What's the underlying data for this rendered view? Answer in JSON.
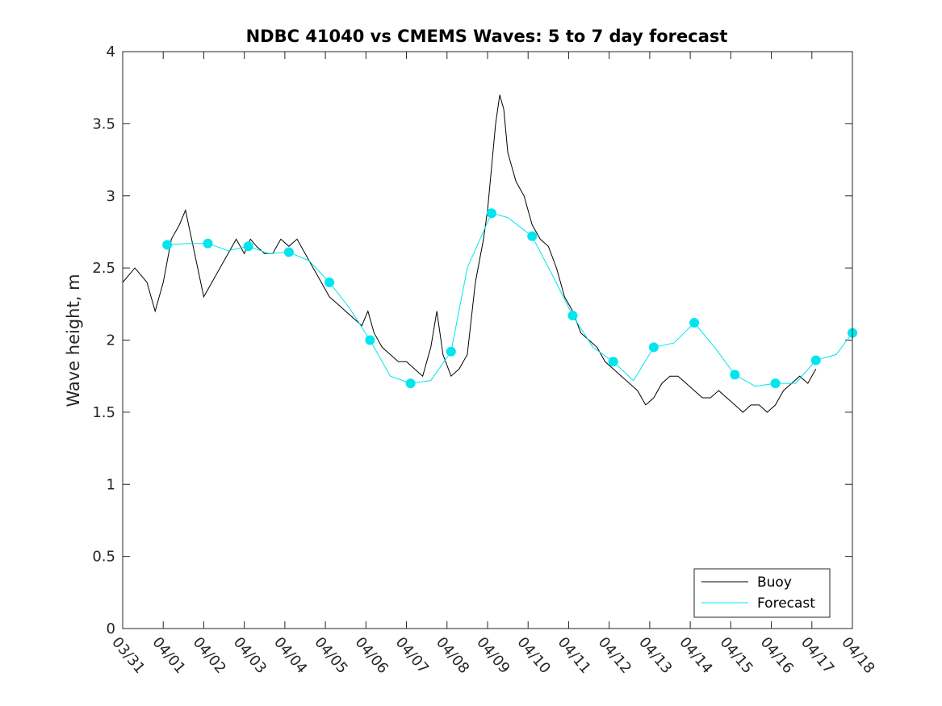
{
  "chart_data": {
    "type": "line",
    "title": "NDBC 41040 vs CMEMS Waves: 5 to 7 day forecast",
    "xlabel": "",
    "ylabel": "Wave height, m",
    "xlim": [
      "03/31",
      "04/18"
    ],
    "ylim": [
      0,
      4
    ],
    "grid": false,
    "legend_position": "bottom-right",
    "x_ticks": [
      "03/31",
      "04/01",
      "04/02",
      "04/03",
      "04/04",
      "04/05",
      "04/06",
      "04/07",
      "04/08",
      "04/09",
      "04/10",
      "04/11",
      "04/12",
      "04/13",
      "04/14",
      "04/15",
      "04/16",
      "04/17",
      "04/18"
    ],
    "y_ticks": [
      0,
      0.5,
      1,
      1.5,
      2,
      2.5,
      3,
      3.5,
      4
    ],
    "y_tick_labels": [
      "0",
      "0.5",
      "1",
      "1.5",
      "2",
      "2.5",
      "3",
      "3.5",
      "4"
    ],
    "colors": {
      "buoy": "#000000",
      "forecast": "#00e5ee"
    },
    "x_units": "days since 03/31 00:00",
    "series": [
      {
        "name": "Buoy",
        "color": "#000000",
        "points": [
          [
            0.0,
            2.4
          ],
          [
            0.3,
            2.5
          ],
          [
            0.6,
            2.4
          ],
          [
            0.8,
            2.2
          ],
          [
            1.0,
            2.4
          ],
          [
            1.2,
            2.7
          ],
          [
            1.4,
            2.8
          ],
          [
            1.55,
            2.9
          ],
          [
            1.7,
            2.7
          ],
          [
            1.85,
            2.5
          ],
          [
            2.0,
            2.3
          ],
          [
            2.2,
            2.4
          ],
          [
            2.4,
            2.5
          ],
          [
            2.6,
            2.6
          ],
          [
            2.8,
            2.7
          ],
          [
            3.0,
            2.6
          ],
          [
            3.15,
            2.7
          ],
          [
            3.3,
            2.65
          ],
          [
            3.5,
            2.6
          ],
          [
            3.7,
            2.6
          ],
          [
            3.9,
            2.7
          ],
          [
            4.1,
            2.65
          ],
          [
            4.3,
            2.7
          ],
          [
            4.5,
            2.6
          ],
          [
            4.7,
            2.5
          ],
          [
            4.9,
            2.4
          ],
          [
            5.1,
            2.3
          ],
          [
            5.3,
            2.25
          ],
          [
            5.5,
            2.2
          ],
          [
            5.7,
            2.15
          ],
          [
            5.9,
            2.1
          ],
          [
            6.05,
            2.2
          ],
          [
            6.2,
            2.05
          ],
          [
            6.4,
            1.95
          ],
          [
            6.6,
            1.9
          ],
          [
            6.8,
            1.85
          ],
          [
            7.0,
            1.85
          ],
          [
            7.2,
            1.8
          ],
          [
            7.4,
            1.75
          ],
          [
            7.6,
            1.95
          ],
          [
            7.75,
            2.2
          ],
          [
            7.9,
            1.9
          ],
          [
            8.1,
            1.75
          ],
          [
            8.3,
            1.8
          ],
          [
            8.5,
            1.9
          ],
          [
            8.7,
            2.4
          ],
          [
            8.9,
            2.7
          ],
          [
            9.0,
            2.9
          ],
          [
            9.1,
            3.2
          ],
          [
            9.2,
            3.5
          ],
          [
            9.3,
            3.7
          ],
          [
            9.4,
            3.6
          ],
          [
            9.5,
            3.3
          ],
          [
            9.7,
            3.1
          ],
          [
            9.9,
            3.0
          ],
          [
            10.1,
            2.8
          ],
          [
            10.3,
            2.7
          ],
          [
            10.5,
            2.65
          ],
          [
            10.7,
            2.5
          ],
          [
            10.9,
            2.3
          ],
          [
            11.1,
            2.2
          ],
          [
            11.3,
            2.05
          ],
          [
            11.5,
            2.0
          ],
          [
            11.7,
            1.95
          ],
          [
            11.9,
            1.85
          ],
          [
            12.1,
            1.8
          ],
          [
            12.3,
            1.75
          ],
          [
            12.5,
            1.7
          ],
          [
            12.7,
            1.65
          ],
          [
            12.9,
            1.55
          ],
          [
            13.1,
            1.6
          ],
          [
            13.3,
            1.7
          ],
          [
            13.5,
            1.75
          ],
          [
            13.7,
            1.75
          ],
          [
            13.9,
            1.7
          ],
          [
            14.1,
            1.65
          ],
          [
            14.3,
            1.6
          ],
          [
            14.5,
            1.6
          ],
          [
            14.7,
            1.65
          ],
          [
            14.9,
            1.6
          ],
          [
            15.1,
            1.55
          ],
          [
            15.3,
            1.5
          ],
          [
            15.5,
            1.55
          ],
          [
            15.7,
            1.55
          ],
          [
            15.9,
            1.5
          ],
          [
            16.1,
            1.55
          ],
          [
            16.3,
            1.65
          ],
          [
            16.5,
            1.7
          ],
          [
            16.7,
            1.75
          ],
          [
            16.9,
            1.7
          ],
          [
            17.1,
            1.8
          ]
        ]
      },
      {
        "name": "Forecast",
        "color": "#00e5ee",
        "points": [
          [
            1.1,
            2.66
          ],
          [
            1.6,
            2.67
          ],
          [
            2.1,
            2.67
          ],
          [
            2.6,
            2.62
          ],
          [
            3.1,
            2.65
          ],
          [
            3.6,
            2.6
          ],
          [
            4.1,
            2.61
          ],
          [
            4.6,
            2.55
          ],
          [
            5.1,
            2.4
          ],
          [
            5.6,
            2.22
          ],
          [
            6.1,
            2.0
          ],
          [
            6.6,
            1.75
          ],
          [
            7.1,
            1.7
          ],
          [
            7.6,
            1.72
          ],
          [
            8.1,
            1.92
          ],
          [
            8.5,
            2.5
          ],
          [
            9.1,
            2.88
          ],
          [
            9.5,
            2.85
          ],
          [
            10.1,
            2.72
          ],
          [
            10.6,
            2.45
          ],
          [
            11.1,
            2.17
          ],
          [
            11.6,
            1.95
          ],
          [
            12.1,
            1.85
          ],
          [
            12.6,
            1.72
          ],
          [
            13.1,
            1.95
          ],
          [
            13.6,
            1.98
          ],
          [
            14.1,
            2.12
          ],
          [
            14.6,
            1.95
          ],
          [
            15.1,
            1.76
          ],
          [
            15.6,
            1.68
          ],
          [
            16.1,
            1.7
          ],
          [
            16.6,
            1.7
          ],
          [
            17.1,
            1.86
          ],
          [
            17.6,
            1.9
          ],
          [
            18.0,
            2.05
          ]
        ]
      }
    ]
  }
}
